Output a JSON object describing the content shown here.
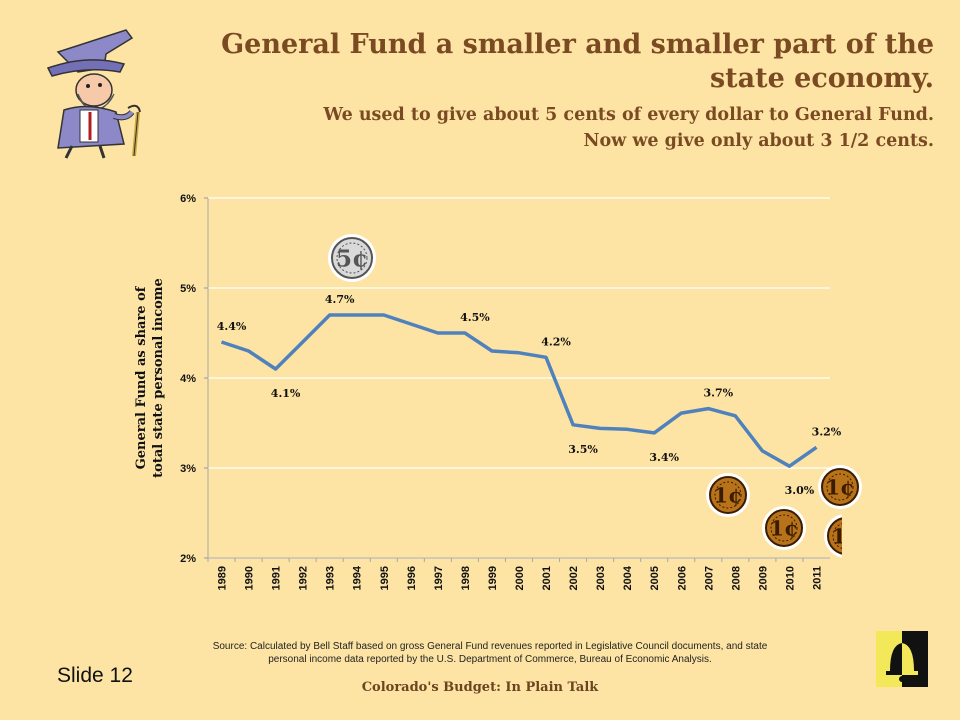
{
  "header": {
    "title": "General Fund a smaller and smaller part of the state economy.",
    "subtitle_line1": "We used to give about 5 cents of every dollar to General Fund.",
    "subtitle_line2": "Now we give only about 3 1/2 cents."
  },
  "chart_data": {
    "type": "line",
    "x": [
      "1989",
      "1990",
      "1991",
      "1992",
      "1993",
      "1994",
      "1995",
      "1996",
      "1997",
      "1998",
      "1999",
      "2000",
      "2001",
      "2002",
      "2003",
      "2004",
      "2005",
      "2006",
      "2007",
      "2008",
      "2009",
      "2010",
      "2011"
    ],
    "series": [
      {
        "values": [
          4.4,
          4.3,
          4.1,
          4.4,
          4.7,
          4.7,
          4.7,
          4.6,
          4.5,
          4.5,
          4.3,
          4.28,
          4.23,
          3.48,
          3.44,
          3.43,
          3.39,
          3.61,
          3.66,
          3.58,
          3.19,
          3.02,
          3.23
        ]
      }
    ],
    "ylabel_line1": "General Fund as share of",
    "ylabel_line2": "total state personal income",
    "ylim": [
      2,
      6
    ],
    "yticks": [
      "2%",
      "3%",
      "4%",
      "5%",
      "6%"
    ],
    "grid": "horizontal",
    "line_color": "#4f81bd",
    "annotations": [
      {
        "x": "1989",
        "y": 4.4,
        "text": "4.4%",
        "pos": "above"
      },
      {
        "x": "1991",
        "y": 4.1,
        "text": "4.1%",
        "pos": "below"
      },
      {
        "x": "1993",
        "y": 4.7,
        "text": "4.7%",
        "pos": "above"
      },
      {
        "x": "1998",
        "y": 4.5,
        "text": "4.5%",
        "pos": "above"
      },
      {
        "x": "2001",
        "y": 4.23,
        "text": "4.2%",
        "pos": "above"
      },
      {
        "x": "2002",
        "y": 3.48,
        "text": "3.5%",
        "pos": "below"
      },
      {
        "x": "2005",
        "y": 3.39,
        "text": "3.4%",
        "pos": "below"
      },
      {
        "x": "2007",
        "y": 3.66,
        "text": "3.7%",
        "pos": "above"
      },
      {
        "x": "2010",
        "y": 3.02,
        "text": "3.0%",
        "pos": "below"
      },
      {
        "x": "2011",
        "y": 3.23,
        "text": "3.2%",
        "pos": "above"
      }
    ]
  },
  "coins": {
    "nickel_label": "5¢",
    "penny_label": "1¢"
  },
  "source": "Source: Calculated by Bell Staff based on gross General Fund revenues reported in Legislative Council documents, and state personal income data reported by the U.S. Department of Commerce, Bureau of Economic Analysis.",
  "slide_label": "Slide 12",
  "footer": "Colorado's Budget: In Plain Talk"
}
